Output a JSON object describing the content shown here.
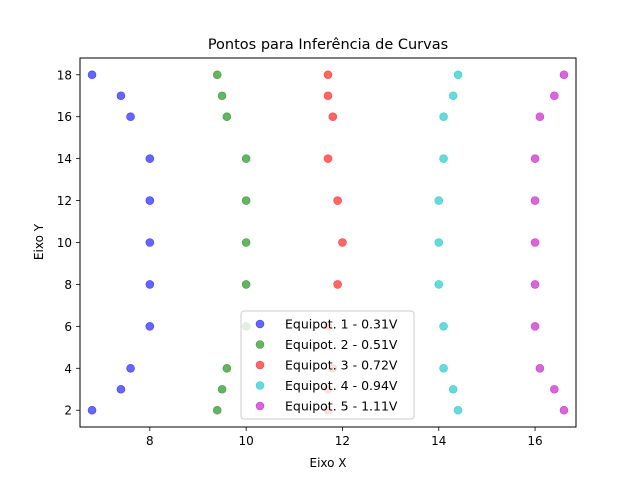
{
  "chart_data": {
    "type": "scatter",
    "title": "Pontos para Inferência de Curvas",
    "xlabel": "Eixo X",
    "ylabel": "Eixo Y",
    "xlim": [
      6.55,
      16.85
    ],
    "ylim": [
      1.2,
      18.8
    ],
    "xticks": [
      8,
      10,
      12,
      14,
      16
    ],
    "yticks": [
      2,
      4,
      6,
      8,
      10,
      12,
      14,
      16,
      18
    ],
    "grid": false,
    "legend_position": "lower center",
    "series": [
      {
        "name": "Equipot. 1 - 0.31V",
        "color": "#0000ff",
        "points": [
          [
            6.8,
            2
          ],
          [
            7.4,
            3
          ],
          [
            7.6,
            4
          ],
          [
            8.0,
            6
          ],
          [
            8.0,
            8
          ],
          [
            8.0,
            10
          ],
          [
            8.0,
            12
          ],
          [
            8.0,
            14
          ],
          [
            7.6,
            16
          ],
          [
            7.4,
            17
          ],
          [
            6.8,
            18
          ]
        ]
      },
      {
        "name": "Equipot. 2 - 0.51V",
        "color": "#008000",
        "points": [
          [
            9.4,
            2
          ],
          [
            9.5,
            3
          ],
          [
            9.6,
            4
          ],
          [
            10.0,
            6
          ],
          [
            10.0,
            8
          ],
          [
            10.0,
            10
          ],
          [
            10.0,
            12
          ],
          [
            10.0,
            14
          ],
          [
            9.6,
            16
          ],
          [
            9.5,
            17
          ],
          [
            9.4,
            18
          ]
        ]
      },
      {
        "name": "Equipot. 3 - 0.72V",
        "color": "#ff0000",
        "points": [
          [
            11.7,
            2
          ],
          [
            11.7,
            3
          ],
          [
            11.8,
            4
          ],
          [
            11.7,
            6
          ],
          [
            11.9,
            8
          ],
          [
            12.0,
            10
          ],
          [
            11.9,
            12
          ],
          [
            11.7,
            14
          ],
          [
            11.8,
            16
          ],
          [
            11.7,
            17
          ],
          [
            11.7,
            18
          ]
        ]
      },
      {
        "name": "Equipot. 4 - 0.94V",
        "color": "#00bfbf",
        "points": [
          [
            14.4,
            2
          ],
          [
            14.3,
            3
          ],
          [
            14.1,
            4
          ],
          [
            14.1,
            6
          ],
          [
            14.0,
            8
          ],
          [
            14.0,
            10
          ],
          [
            14.0,
            12
          ],
          [
            14.1,
            14
          ],
          [
            14.1,
            16
          ],
          [
            14.3,
            17
          ],
          [
            14.4,
            18
          ]
        ]
      },
      {
        "name": "Equipot. 5 - 1.11V",
        "color": "#bf00bf",
        "points": [
          [
            16.6,
            2
          ],
          [
            16.4,
            3
          ],
          [
            16.1,
            4
          ],
          [
            16.0,
            6
          ],
          [
            16.0,
            8
          ],
          [
            16.0,
            10
          ],
          [
            16.0,
            12
          ],
          [
            16.0,
            14
          ],
          [
            16.1,
            16
          ],
          [
            16.4,
            17
          ],
          [
            16.6,
            18
          ]
        ]
      }
    ]
  }
}
